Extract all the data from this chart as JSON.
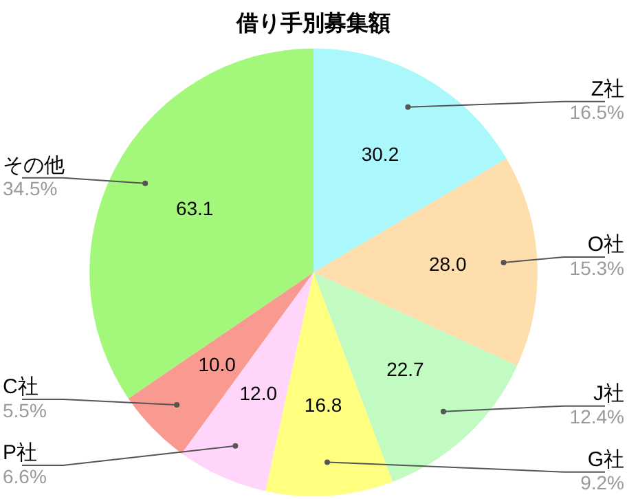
{
  "chart_data": {
    "type": "pie",
    "title": "借り手別募集額",
    "categories": [
      "Z社",
      "O社",
      "J社",
      "G社",
      "P社",
      "C社",
      "その他"
    ],
    "values": [
      30.2,
      28.0,
      22.7,
      16.8,
      12.0,
      10.0,
      63.1
    ],
    "colors": [
      "#aaf8fc",
      "#ffdead",
      "#c1fbc1",
      "#ffff80",
      "#ffd5f9",
      "#f99a90",
      "#a3f77a"
    ],
    "value_labels": [
      "30.2",
      "28.0",
      "22.7",
      "16.8",
      "12.0",
      "10.0",
      "63.1"
    ],
    "annotations": [
      "16.5%",
      "15.3%",
      "12.4%",
      "9.2%",
      "6.6%",
      "5.5%",
      "34.5%"
    ],
    "legend": false
  }
}
